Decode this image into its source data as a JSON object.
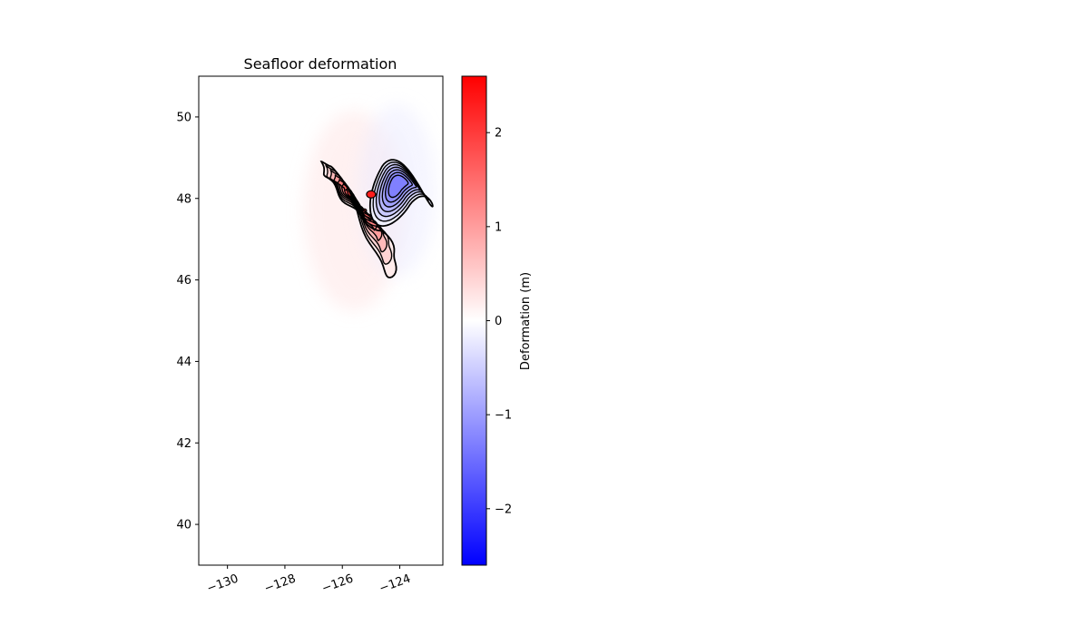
{
  "chart_data": {
    "type": "heatmap",
    "title": "Seafloor deformation",
    "xlabel": "",
    "ylabel": "",
    "xlim": [
      -131,
      -122.5
    ],
    "ylim": [
      39,
      51
    ],
    "x_ticks": [
      -130,
      -128,
      -126,
      -124
    ],
    "x_tick_labels": [
      "−130",
      "−128",
      "−126",
      "−124"
    ],
    "y_ticks": [
      40,
      42,
      44,
      46,
      48,
      50
    ],
    "y_tick_labels": [
      "40",
      "42",
      "44",
      "46",
      "48",
      "50"
    ],
    "grid": false,
    "colorbar": {
      "label": "Deformation (m)",
      "range": [
        -2.6,
        2.6
      ],
      "ticks": [
        -2,
        -1,
        0,
        1,
        2
      ],
      "tick_labels": [
        "−2",
        "−1",
        "0",
        "1",
        "2"
      ],
      "colormap": [
        "#0000ff",
        "#ffffff",
        "#ff0000"
      ]
    },
    "uplift_lobe": {
      "center_lon": -125.0,
      "center_lat": 48.1,
      "peak_deformation": 2.3,
      "extent_lon": [
        -126.8,
        -124.3
      ],
      "extent_lat": [
        45.8,
        49.1
      ]
    },
    "subsidence_lobe": {
      "center_lon": -124.3,
      "center_lat": 48.3,
      "peak_deformation": -1.4,
      "extent_lon": [
        -125.8,
        -123.2
      ],
      "extent_lat": [
        46.2,
        49.4
      ]
    },
    "contours": {
      "positive_levels": [
        0.2,
        0.45,
        0.7,
        1.0,
        1.3,
        1.6,
        1.9
      ],
      "negative_levels": [
        -0.15,
        -0.35,
        -0.55,
        -0.75,
        -0.95,
        -1.15,
        -1.3
      ],
      "color": "#000000"
    }
  }
}
